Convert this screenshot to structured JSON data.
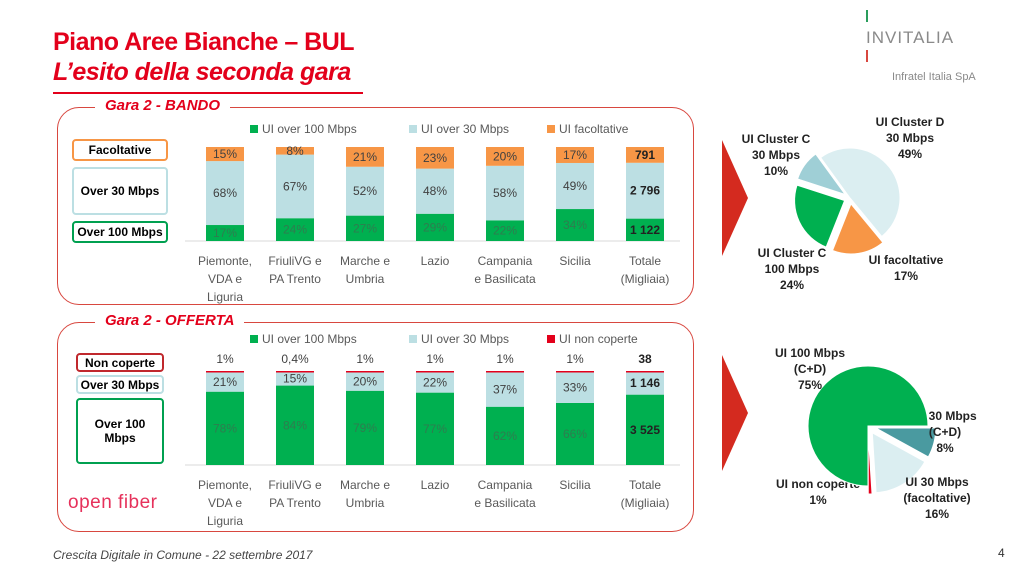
{
  "header": {
    "title": "Piano Aree Bianche – BUL",
    "subtitle": "L’esito della seconda gara"
  },
  "logo": {
    "name": "INVITALIA",
    "sub": "Infratel Italia SpA"
  },
  "footer": {
    "text": "Crescita Digitale in Comune - 22 settembre 2017",
    "page": "4"
  },
  "openfiber": "open fiber",
  "colors": {
    "green": "#00b050",
    "lightblue": "#bcdfe3",
    "orange": "#f79646",
    "red": "#e3001b",
    "teal": "#4a9aa0"
  },
  "panel1": {
    "title": "Gara 2 - BANDO",
    "legend_boxes": [
      "Facoltative",
      "Over 30 Mbps",
      "Over 100 Mbps"
    ]
  },
  "panel2": {
    "title": "Gara 2 - OFFERTA",
    "legend_boxes": [
      "Non coperte",
      "Over 30 Mbps",
      "Over 100 Mbps"
    ]
  },
  "chart_data": [
    {
      "type": "bar",
      "stacked": true,
      "categories": [
        "Piemonte, VDA e Liguria",
        "FriuliVG e PA Trento",
        "Marche e Umbria",
        "Lazio",
        "Campania e Basilicata",
        "Sicilia",
        "Totale (Migliaia)"
      ],
      "legend_position": "top",
      "series": [
        {
          "name": "UI over 100 Mbps",
          "color": "#00b050",
          "values": [
            17,
            24,
            27,
            29,
            22,
            34,
            1122
          ],
          "labels": [
            "17%",
            "24%",
            "27%",
            "29%",
            "22%",
            "34%",
            "1 122"
          ]
        },
        {
          "name": "UI over 30 Mbps",
          "color": "#bcdfe3",
          "values": [
            68,
            67,
            52,
            48,
            58,
            49,
            2796
          ],
          "labels": [
            "68%",
            "67%",
            "52%",
            "48%",
            "58%",
            "49%",
            "2 796"
          ]
        },
        {
          "name": "UI facoltative",
          "color": "#f79646",
          "values": [
            15,
            8,
            21,
            23,
            20,
            17,
            791
          ],
          "labels": [
            "15%",
            "8%",
            "21%",
            "23%",
            "20%",
            "17%",
            "791"
          ]
        }
      ]
    },
    {
      "type": "bar",
      "stacked": true,
      "categories": [
        "Piemonte, VDA e Liguria",
        "FriuliVG e PA Trento",
        "Marche e Umbria",
        "Lazio",
        "Campania e Basilicata",
        "Sicilia",
        "Totale (Migliaia)"
      ],
      "legend_position": "top",
      "series": [
        {
          "name": "UI over 100 Mbps",
          "color": "#00b050",
          "values": [
            78,
            84,
            79,
            77,
            62,
            66,
            3525
          ],
          "labels": [
            "78%",
            "84%",
            "79%",
            "77%",
            "62%",
            "66%",
            "3 525"
          ]
        },
        {
          "name": "UI over 30 Mbps",
          "color": "#bcdfe3",
          "values": [
            21,
            15,
            20,
            22,
            37,
            33,
            1146
          ],
          "labels": [
            "21%",
            "15%",
            "20%",
            "22%",
            "37%",
            "33%",
            "1 146"
          ]
        },
        {
          "name": "UI non coperte",
          "color": "#e3001b",
          "values": [
            1,
            0.4,
            1,
            1,
            1,
            1,
            38
          ],
          "labels": [
            "1%",
            "0,4%",
            "1%",
            "1%",
            "1%",
            "1%",
            "38"
          ]
        }
      ]
    },
    {
      "type": "pie",
      "slices": [
        {
          "label": [
            "UI Cluster D",
            "30 Mbps",
            "49%"
          ],
          "value": 49,
          "color": "#dbeef1"
        },
        {
          "label": [
            "UI facoltative",
            "17%"
          ],
          "value": 17,
          "color": "#f79646"
        },
        {
          "label": [
            "UI Cluster C",
            "100 Mbps",
            "24%"
          ],
          "value": 24,
          "color": "#00b050"
        },
        {
          "label": [
            "UI Cluster C",
            "30 Mbps",
            "10%"
          ],
          "value": 10,
          "color": "#9fcfd6"
        }
      ]
    },
    {
      "type": "pie",
      "slices": [
        {
          "label": [
            "UI 30 Mbps",
            "(C+D)",
            "8%"
          ],
          "value": 8,
          "color": "#4a9aa0"
        },
        {
          "label": [
            "UI 30 Mbps",
            "(facoltative)",
            "16%"
          ],
          "value": 16,
          "color": "#dbeef1"
        },
        {
          "label": [
            "UI non coperte",
            "1%"
          ],
          "value": 1,
          "color": "#e3001b"
        },
        {
          "label": [
            "UI 100 Mbps",
            "(C+D)",
            "75%"
          ],
          "value": 75,
          "color": "#00b050"
        }
      ]
    }
  ]
}
